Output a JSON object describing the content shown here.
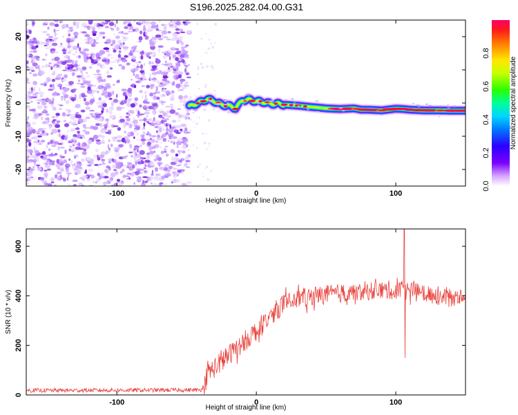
{
  "page_title": "S196.2025.282.04.00.G31",
  "colors": {
    "snr_line": "#e8403a",
    "scatter_purple": "#8a2be2",
    "axis": "#000000"
  },
  "chart_data": [
    {
      "type": "heatmap",
      "title": "S196.2025.282.04.00.G31",
      "xlabel": "Height of straight line (km)",
      "ylabel": "Frequency (Hz)",
      "xlim": [
        -165,
        150
      ],
      "ylim": [
        -25,
        25
      ],
      "xticks": [
        -100,
        0,
        100
      ],
      "yticks": [
        -20,
        -10,
        0,
        10,
        20
      ],
      "noise_region_x": [
        -165,
        -48
      ],
      "signal_band": {
        "x": [
          -48,
          -40,
          -35,
          -30,
          -25,
          -20,
          -15,
          -10,
          -5,
          0,
          5,
          10,
          15,
          20,
          30,
          40,
          50,
          60,
          70,
          75,
          80,
          90,
          100,
          105,
          110,
          120,
          130,
          140,
          150
        ],
        "frequency_hz": [
          -1.0,
          0.3,
          1.2,
          0.5,
          -0.5,
          -0.8,
          -1.5,
          0.8,
          1.0,
          0.5,
          0.3,
          -0.2,
          -0.2,
          -0.5,
          -0.8,
          -1.2,
          -1.6,
          -1.8,
          -1.6,
          -2.0,
          -2.0,
          -2.2,
          -1.7,
          -1.8,
          -2.0,
          -2.2,
          -2.2,
          -2.3,
          -2.3
        ]
      },
      "colorbar": {
        "label": "Normalized spectral amplitude",
        "range": [
          0,
          1
        ],
        "ticks": [
          "0.0",
          "0.2",
          "0.4",
          "0.6",
          "0.8"
        ]
      }
    },
    {
      "type": "line",
      "xlabel": "Height of straight line (km)",
      "ylabel": "SNR (10 * v/v)",
      "xlim": [
        -165,
        150
      ],
      "ylim": [
        0,
        670
      ],
      "xticks": [
        -100,
        0,
        100
      ],
      "yticks": [
        0,
        200,
        400,
        600
      ],
      "series": [
        {
          "name": "SNR",
          "trend_x": [
            -165,
            -40,
            -37,
            -35,
            -30,
            -20,
            -10,
            0,
            10,
            20,
            30,
            40,
            60,
            80,
            100,
            110,
            120,
            140,
            150
          ],
          "trend_y": [
            18,
            20,
            40,
            90,
            110,
            160,
            210,
            260,
            320,
            370,
            390,
            400,
            410,
            420,
            425,
            420,
            410,
            395,
            400
          ],
          "spike": {
            "x": 106,
            "max": 670,
            "min": 150
          }
        }
      ]
    }
  ]
}
